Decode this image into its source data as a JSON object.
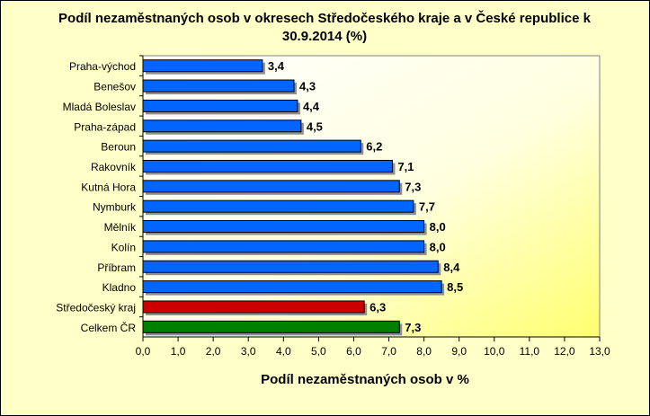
{
  "chart_data": {
    "type": "bar",
    "orientation": "horizontal",
    "title": "Podíl nezaměstnaných osob v okresech Středočeského kraje a v České republice k 30.9.2014 (%)",
    "xlabel": "Podíl nezaměstnaných osob v %",
    "ylabel": "",
    "xlim": [
      0,
      13
    ],
    "tick_step": 1,
    "tick_labels": [
      "0,0",
      "1,0",
      "2,0",
      "3,0",
      "4,0",
      "5,0",
      "6,0",
      "7,0",
      "8,0",
      "9,0",
      "10,0",
      "11,0",
      "12,0",
      "13,0"
    ],
    "categories": [
      "Praha-východ",
      "Benešov",
      "Mladá Boleslav",
      "Praha-západ",
      "Beroun",
      "Rakovník",
      "Kutná Hora",
      "Nymburk",
      "Mělník",
      "Kolín",
      "Příbram",
      "Kladno",
      "Středočeský kraj",
      "Celkem ČR"
    ],
    "values": [
      3.4,
      4.3,
      4.4,
      4.5,
      6.2,
      7.1,
      7.3,
      7.7,
      8.0,
      8.0,
      8.4,
      8.5,
      6.3,
      7.3
    ],
    "value_labels": [
      "3,4",
      "4,3",
      "4,4",
      "4,5",
      "6,2",
      "7,1",
      "7,3",
      "7,7",
      "8,0",
      "8,0",
      "8,4",
      "8,5",
      "6,3",
      "7,3"
    ],
    "bar_colors": [
      "#0066ff",
      "#0066ff",
      "#0066ff",
      "#0066ff",
      "#0066ff",
      "#0066ff",
      "#0066ff",
      "#0066ff",
      "#0066ff",
      "#0066ff",
      "#0066ff",
      "#0066ff",
      "#cc0000",
      "#008000"
    ],
    "grid": false,
    "legend": "none"
  }
}
